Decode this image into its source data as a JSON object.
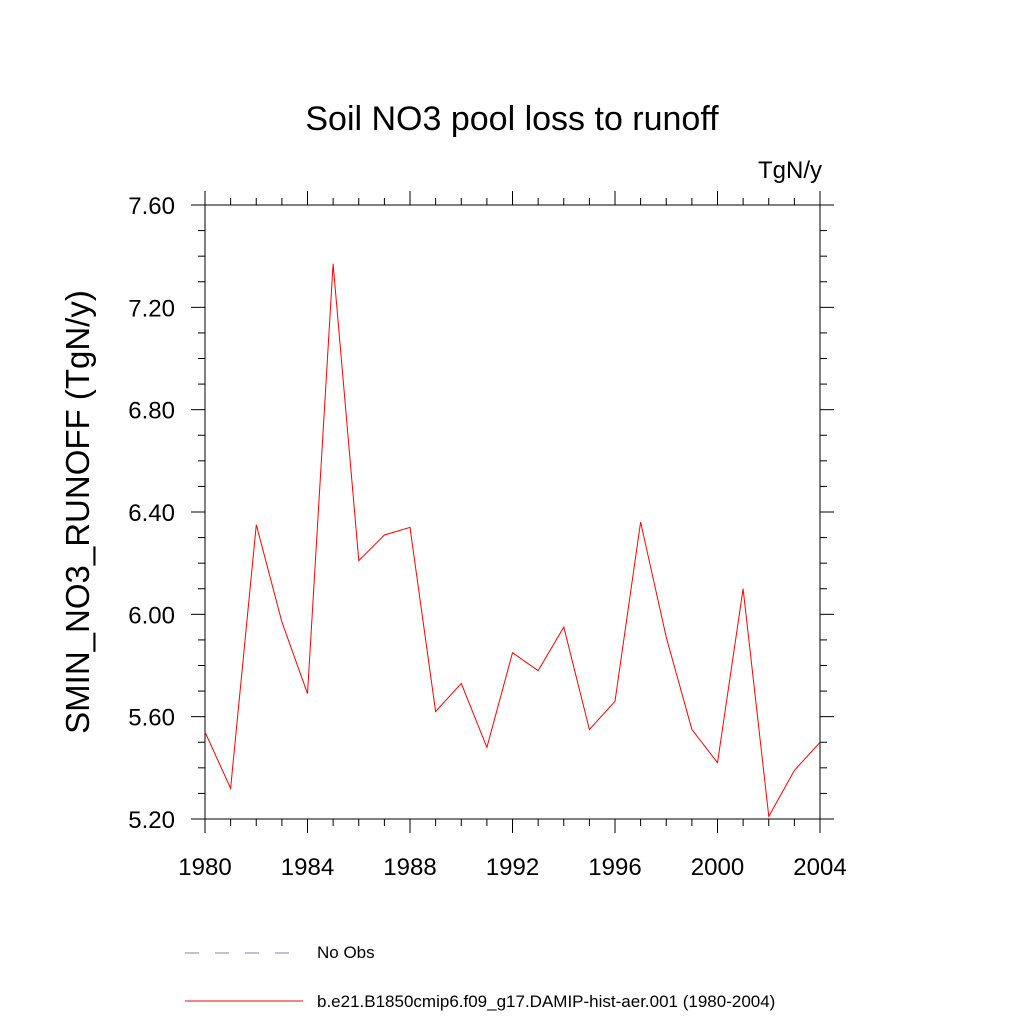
{
  "chart_data": {
    "type": "line",
    "title": "Soil NO3 pool loss to runoff",
    "units_label": "TgN/y",
    "ylabel": "SMIN_NO3_RUNOFF  (TgN/y)",
    "xlabel": "",
    "xlim": [
      1980,
      2004
    ],
    "ylim": [
      5.2,
      7.6
    ],
    "x_ticks": [
      1980,
      1984,
      1988,
      1992,
      1996,
      2000,
      2004
    ],
    "x_tick_labels": [
      "1980",
      "1984",
      "1988",
      "1992",
      "1996",
      "2000",
      "2004"
    ],
    "y_ticks": [
      5.2,
      5.6,
      6.0,
      6.4,
      6.8,
      7.2,
      7.6
    ],
    "y_tick_labels": [
      "5.20",
      "5.60",
      "6.00",
      "6.40",
      "6.80",
      "7.20",
      "7.60"
    ],
    "grid": false,
    "legend_position": "bottom",
    "series": [
      {
        "name": "No Obs",
        "color": "#7f7fbf",
        "style": "dashed",
        "values": []
      },
      {
        "name": "b.e21.B1850cmip6.f09_g17.DAMIP-hist-aer.001 (1980-2004)",
        "color": "#ff0000",
        "style": "solid",
        "x": [
          1980,
          1981,
          1982,
          1983,
          1984,
          1985,
          1986,
          1987,
          1988,
          1989,
          1990,
          1991,
          1992,
          1993,
          1994,
          1995,
          1996,
          1997,
          1998,
          1999,
          2000,
          2001,
          2002,
          2003,
          2004
        ],
        "values": [
          5.54,
          5.32,
          6.35,
          5.97,
          5.69,
          7.37,
          6.21,
          6.31,
          6.34,
          5.62,
          5.73,
          5.48,
          5.85,
          5.78,
          5.95,
          5.55,
          5.66,
          6.36,
          5.91,
          5.55,
          5.42,
          6.1,
          5.21,
          5.39,
          5.5
        ]
      }
    ]
  }
}
